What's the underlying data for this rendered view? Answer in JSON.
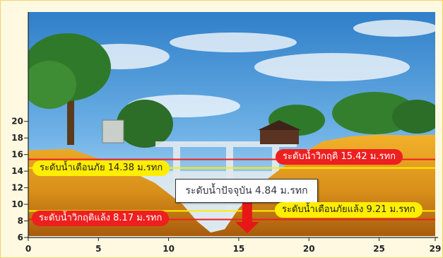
{
  "chart_data": {
    "type": "area",
    "x_axis": {
      "ticks": [
        0,
        5,
        10,
        15,
        20,
        25,
        29
      ],
      "range": [
        0,
        29
      ]
    },
    "y_axis": {
      "ticks": [
        6,
        8,
        10,
        12,
        14,
        16,
        18,
        20
      ],
      "range": [
        6,
        21
      ]
    },
    "levels": {
      "critical_high": {
        "label": "ระดับน้ำวิกฤติ 15.42 ม.รทก",
        "value": 15.42,
        "color": "#ee1f1f"
      },
      "warning_high": {
        "label": "ระดับน้ำเตือนภัย 14.38 ม.รทก",
        "value": 14.38,
        "color": "#ffee00"
      },
      "current": {
        "label": "ระดับน้ำปัจจุบัน 4.84 ม.รทก",
        "value": 4.84
      },
      "warning_low": {
        "label": "ระดับน้ำเตือนภัยแล้ง 9.21 ม.รทก",
        "value": 9.21,
        "color": "#ffee00"
      },
      "critical_low": {
        "label": "ระดับน้ำวิกฤติแล้ง 8.17 ม.รทก",
        "value": 8.17,
        "color": "#ee1f1f"
      }
    },
    "riverbed_profile": {
      "x": [
        0,
        3,
        5,
        7,
        9,
        11,
        12,
        13,
        14,
        15,
        17,
        19,
        21,
        23,
        25,
        27,
        29
      ],
      "y": [
        16.5,
        16.7,
        15.5,
        14.2,
        12.6,
        10.0,
        8.0,
        6.6,
        7.0,
        9.5,
        13.0,
        15.6,
        17.6,
        18.2,
        18.4,
        18.3,
        18.4
      ]
    }
  }
}
